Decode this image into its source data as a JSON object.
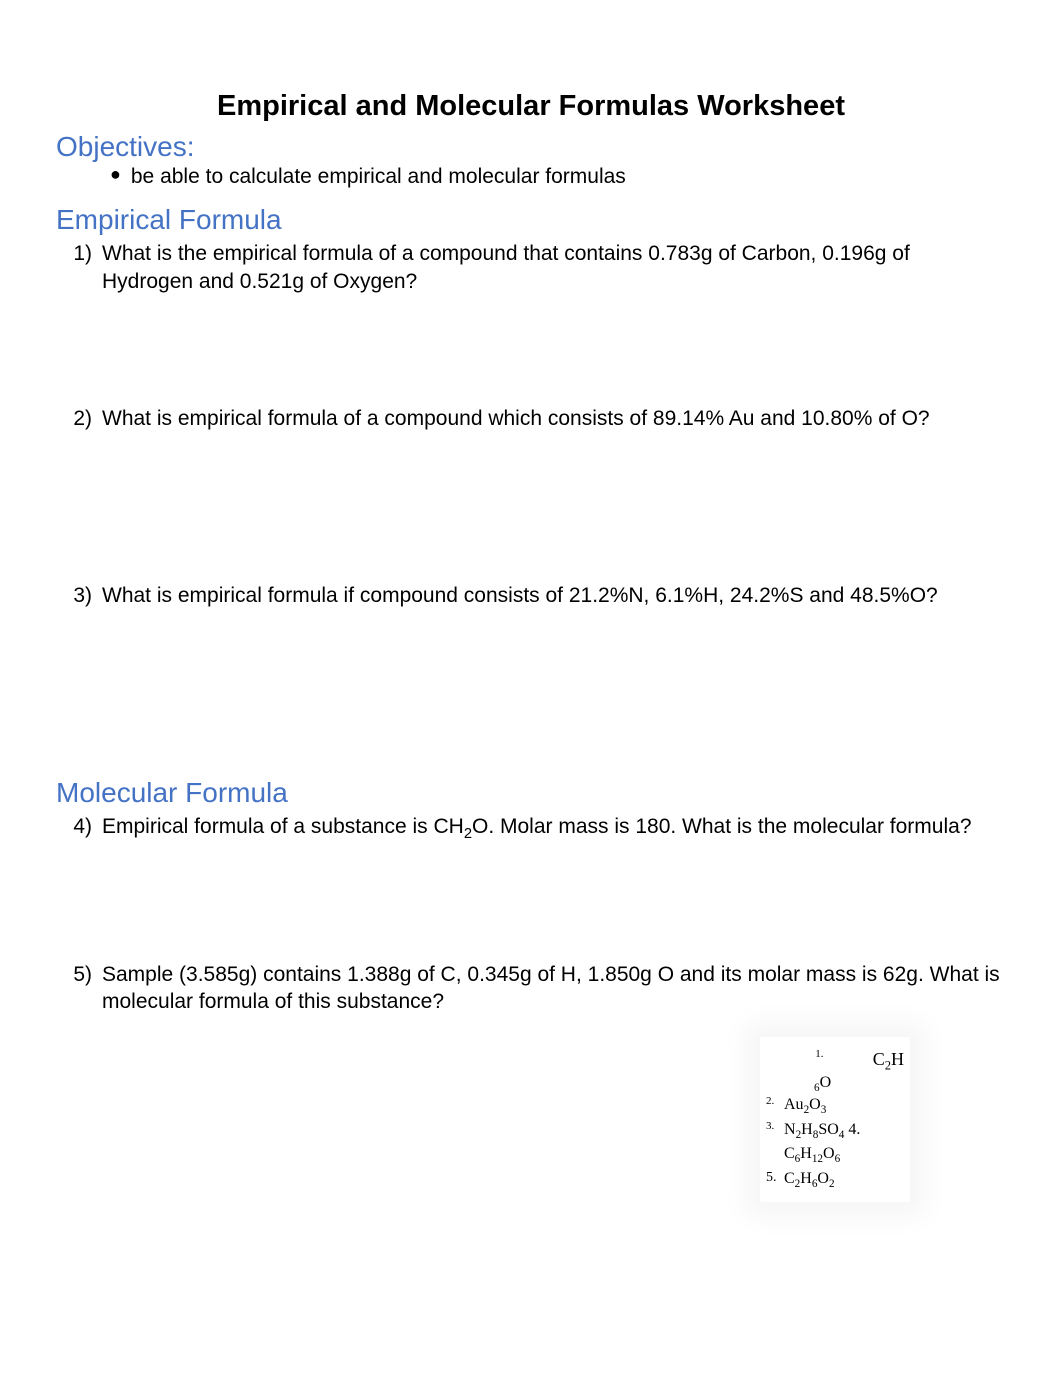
{
  "title": "Empirical and Molecular Formulas Worksheet",
  "objectives": {
    "heading": "Objectives:",
    "bullet": "be able to calculate empirical and molecular formulas"
  },
  "empirical": {
    "heading": "Empirical Formula",
    "q1_num": "1)",
    "q1_text": "What is the empirical formula of a compound that contains 0.783g of Carbon, 0.196g of Hydrogen and 0.521g of Oxygen?",
    "q2_num": "2)",
    "q2_text": "What is empirical formula of a compound which consists of 89.14% Au and 10.80% of O?",
    "q3_num": "3)",
    "q3_text": "What is empirical formula if compound consists of 21.2%N, 6.1%H, 24.2%S and 48.5%O?"
  },
  "molecular": {
    "heading": "Molecular Formula",
    "q4_num": "4)",
    "q4_text_pre": "Empirical formula of a substance is CH",
    "q4_text_post": "O. Molar mass is 180. What is the molecular formula?",
    "q5_num": "5)",
    "q5_text": "Sample (3.585g) contains 1.388g of C, 0.345g of H, 1.850g O and its molar mass is 62g. What is molecular formula of this substance?"
  },
  "answers": {
    "n1": "1.",
    "v1a": "C",
    "v1b": "H",
    "v1c": "O",
    "n2": "2.",
    "v2": "Au",
    "v2b": "O",
    "n3": "3.",
    "v3a": "N",
    "v3b": "H",
    "v3c": "SO",
    "n4": "4.",
    "v4a": "C",
    "v4b": "H",
    "v4c": "O",
    "n5": "5.",
    "v5a": "C",
    "v5b": "H",
    "v5c": "O"
  },
  "colors": {
    "heading_color": "#4472c4",
    "text_color": "#000000",
    "background": "#ffffff"
  }
}
